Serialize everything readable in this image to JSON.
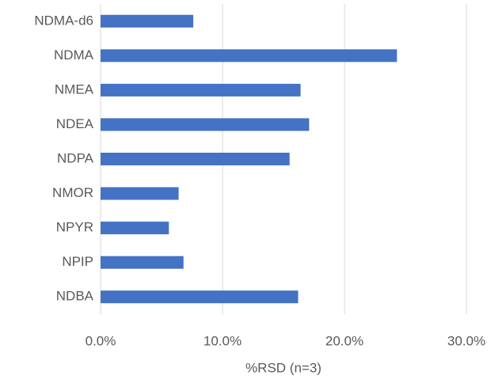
{
  "chart_data": {
    "type": "bar",
    "orientation": "horizontal",
    "categories": [
      "NDMA-d6",
      "NDMA",
      "NMEA",
      "NDEA",
      "NDPA",
      "NMOR",
      "NPYR",
      "NPIP",
      "NDBA"
    ],
    "values": [
      7.6,
      24.3,
      16.4,
      17.1,
      15.5,
      6.4,
      5.6,
      6.8,
      16.2
    ],
    "color": "#4472c4",
    "xlabel": "%RSD (n=3)",
    "xlim": [
      0,
      30
    ],
    "xticks": [
      {
        "value": 0,
        "label": "0.0%"
      },
      {
        "value": 10,
        "label": "10.0%"
      },
      {
        "value": 20,
        "label": "20.0%"
      },
      {
        "value": 30,
        "label": "30.0%"
      }
    ],
    "grid": true
  }
}
